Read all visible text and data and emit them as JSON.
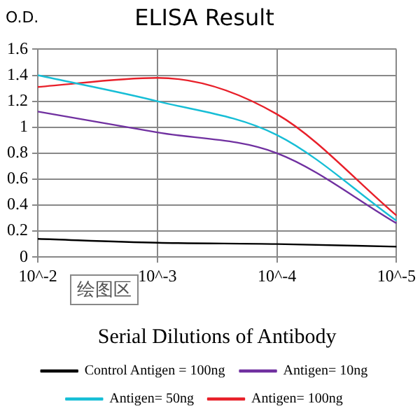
{
  "chart_data": {
    "type": "line",
    "title": "ELISA Result",
    "ylabel": "O.D.",
    "xlabel": "Serial Dilutions of Antibody",
    "categories": [
      "10^-2",
      "10^-3",
      "10^-4",
      "10^-5"
    ],
    "series": [
      {
        "name": "Control Antigen = 100ng",
        "color": "#000000",
        "values": [
          0.14,
          0.11,
          0.1,
          0.08
        ]
      },
      {
        "name": "Antigen= 10ng",
        "color": "#7030a0",
        "values": [
          1.12,
          0.96,
          0.8,
          0.26
        ]
      },
      {
        "name": "Antigen= 50ng",
        "color": "#17bed6",
        "values": [
          1.4,
          1.2,
          0.94,
          0.28
        ]
      },
      {
        "name": "Antigen= 100ng",
        "color": "#e8202a",
        "values": [
          1.31,
          1.38,
          1.1,
          0.32
        ]
      }
    ],
    "ylim": [
      0,
      1.6
    ],
    "yticks": [
      0,
      0.2,
      0.4,
      0.6,
      0.8,
      1,
      1.2,
      1.4,
      1.6
    ],
    "grid": true,
    "legend": "bottom",
    "marker": "none",
    "line_style": "solid",
    "annotations": [
      "绘图区"
    ]
  }
}
